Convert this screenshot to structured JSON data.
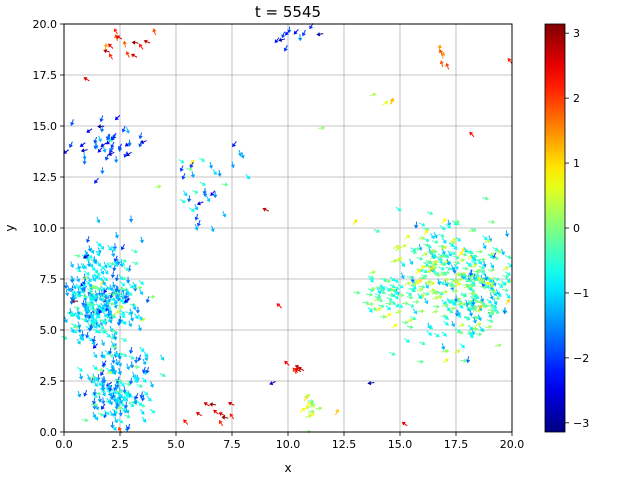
{
  "chart_data": {
    "type": "quiver",
    "title": "t = 5545",
    "xlabel": "x",
    "ylabel": "y",
    "xlim": [
      0,
      20
    ],
    "ylim": [
      0,
      20
    ],
    "x_ticks": [
      0.0,
      2.5,
      5.0,
      7.5,
      10.0,
      12.5,
      15.0,
      17.5,
      20.0
    ],
    "x_tick_labels": [
      "0.0",
      "2.5",
      "5.0",
      "7.5",
      "10.0",
      "12.5",
      "15.0",
      "17.5",
      "20.0"
    ],
    "y_ticks": [
      0.0,
      2.5,
      5.0,
      7.5,
      10.0,
      12.5,
      15.0,
      17.5,
      20.0
    ],
    "y_tick_labels": [
      "0.0",
      "2.5",
      "5.0",
      "7.5",
      "10.0",
      "12.5",
      "15.0",
      "17.5",
      "20.0"
    ],
    "grid": true,
    "colormap": "jet",
    "colorbar": {
      "min": -3.14159,
      "max": 3.14159,
      "ticks": [
        -3,
        -2,
        -1,
        0,
        1,
        2,
        3
      ],
      "tick_labels": [
        "−3",
        "−2",
        "−1",
        "0",
        "1",
        "2",
        "3"
      ]
    },
    "clusters": [
      {
        "cx": 1.6,
        "cy": 6.6,
        "rx": 1.6,
        "ry": 2.3,
        "count": 330,
        "angle": -1.0,
        "spread": 0.55
      },
      {
        "cx": 2.4,
        "cy": 2.2,
        "rx": 1.3,
        "ry": 2.0,
        "count": 170,
        "angle": -1.1,
        "spread": 0.6
      },
      {
        "cx": 2.0,
        "cy": 14.2,
        "rx": 1.3,
        "ry": 1.2,
        "count": 45,
        "angle": -1.9,
        "spread": 0.6
      },
      {
        "cx": 6.2,
        "cy": 12.0,
        "rx": 1.6,
        "ry": 1.7,
        "count": 35,
        "angle": -1.2,
        "spread": 0.7
      },
      {
        "cx": 18.4,
        "cy": 7.2,
        "rx": 1.8,
        "ry": 2.3,
        "count": 250,
        "angle": -0.4,
        "spread": 0.6
      },
      {
        "cx": 16.3,
        "cy": 7.7,
        "rx": 1.4,
        "ry": 2.8,
        "count": 140,
        "angle": -0.1,
        "spread": 0.6
      },
      {
        "cx": 14.6,
        "cy": 6.7,
        "rx": 1.2,
        "ry": 1.0,
        "count": 55,
        "angle": -0.3,
        "spread": 0.5
      },
      {
        "cx": 10.4,
        "cy": 19.4,
        "rx": 1.2,
        "ry": 0.5,
        "count": 10,
        "angle": -2.2,
        "spread": 0.5
      },
      {
        "cx": 2.8,
        "cy": 19.0,
        "rx": 1.7,
        "ry": 0.9,
        "count": 14,
        "angle": 2.4,
        "spread": 0.4
      },
      {
        "cx": 11.0,
        "cy": 1.2,
        "rx": 0.8,
        "ry": 0.6,
        "count": 14,
        "angle": 0.6,
        "spread": 0.4
      },
      {
        "cx": 7.0,
        "cy": 0.7,
        "rx": 1.5,
        "ry": 0.5,
        "count": 10,
        "angle": 2.6,
        "spread": 0.3
      },
      {
        "cx": 10.4,
        "cy": 3.2,
        "rx": 0.5,
        "ry": 0.3,
        "count": 6,
        "angle": 2.4,
        "spread": 0.2
      },
      {
        "cx": 14.4,
        "cy": 16.2,
        "rx": 0.4,
        "ry": 0.5,
        "count": 4,
        "angle": 0.8,
        "spread": 0.3
      },
      {
        "cx": 16.7,
        "cy": 18.3,
        "rx": 0.4,
        "ry": 0.5,
        "count": 5,
        "angle": 1.7,
        "spread": 0.3
      }
    ],
    "singles": [
      {
        "x": 1.0,
        "y": 17.3,
        "angle": 2.6
      },
      {
        "x": 0.9,
        "y": 13.8,
        "angle": -2.9
      },
      {
        "x": 19.9,
        "y": 18.2,
        "angle": 2.2
      },
      {
        "x": 18.2,
        "y": 14.6,
        "angle": 2.3
      },
      {
        "x": 9.0,
        "y": 10.9,
        "angle": 2.7
      },
      {
        "x": 9.3,
        "y": 2.4,
        "angle": -2.7
      },
      {
        "x": 15.2,
        "y": 0.4,
        "angle": 2.5
      },
      {
        "x": 11.5,
        "y": 14.9,
        "angle": 0.1
      },
      {
        "x": 13.0,
        "y": 10.3,
        "angle": 0.9
      },
      {
        "x": 13.7,
        "y": 2.4,
        "angle": -3.0
      },
      {
        "x": 9.6,
        "y": 6.2,
        "angle": 2.4
      },
      {
        "x": 9.9,
        "y": 18.8,
        "angle": -2.0
      },
      {
        "x": 2.5,
        "y": 0.1,
        "angle": 2.0
      },
      {
        "x": 7.6,
        "y": 14.1,
        "angle": -2.2
      }
    ]
  }
}
